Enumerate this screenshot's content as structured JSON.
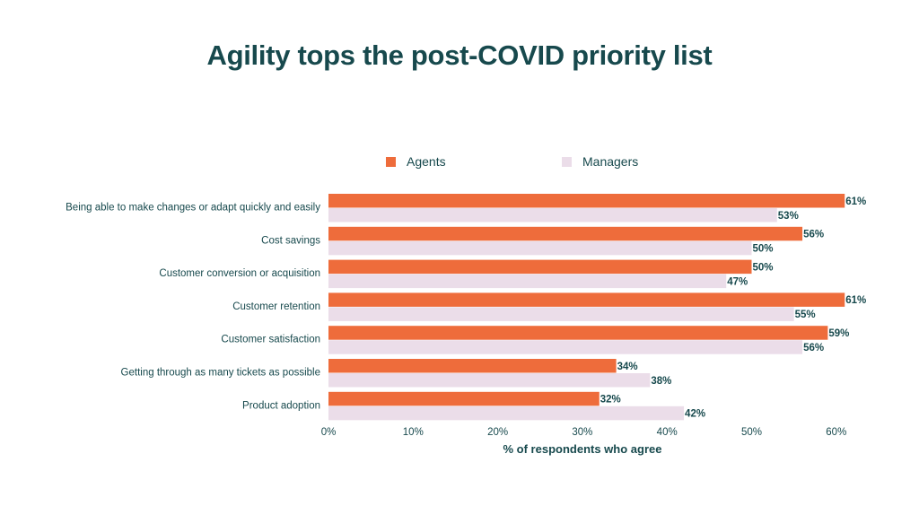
{
  "title": "Agility tops the post-COVID priority list",
  "colors": {
    "agents": "#ee6c3b",
    "managers": "#ebdde9",
    "text": "#17494d"
  },
  "chart_data": {
    "type": "bar",
    "orientation": "horizontal",
    "categories": [
      "Being able to make changes or adapt quickly and easily",
      "Cost savings",
      "Customer conversion or acquisition",
      "Customer retention",
      "Customer satisfaction",
      "Getting through as many tickets as possible",
      "Product adoption"
    ],
    "series": [
      {
        "name": "Agents",
        "values": [
          61,
          56,
          50,
          61,
          59,
          34,
          32
        ]
      },
      {
        "name": "Managers",
        "values": [
          53,
          50,
          47,
          55,
          56,
          38,
          42
        ]
      }
    ],
    "value_labels": [
      [
        "61%",
        "56%",
        "50%",
        "61%",
        "59%",
        "34%",
        "32%"
      ],
      [
        "53%",
        "50%",
        "47%",
        "55%",
        "56%",
        "38%",
        "42%"
      ]
    ],
    "xlabel": "% of respondents who agree",
    "ylabel": "",
    "xlim": [
      0,
      60
    ],
    "xticks": [
      "0%",
      "10%",
      "20%",
      "30%",
      "40%",
      "50%",
      "60%"
    ],
    "legend_position": "top",
    "grid": false
  }
}
